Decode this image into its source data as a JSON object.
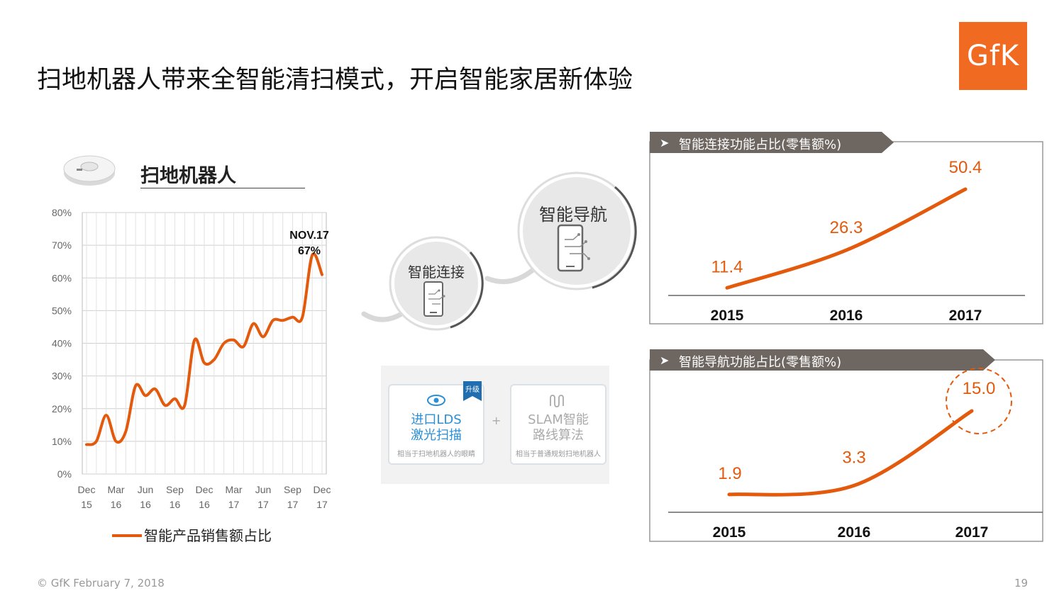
{
  "title": "扫地机器人带来全智能清扫模式，开启智能家居新体验",
  "logo": "GfK",
  "section_title": "扫地机器人",
  "footer": {
    "copyright": "© GfK February 7, 2018",
    "page": "19"
  },
  "circles": {
    "small_label": "智能连接",
    "large_label": "智能导航"
  },
  "tech": {
    "card1": {
      "badge": "升级",
      "line1": "进口LDS",
      "line2": "激光扫描",
      "sub": "相当于扫地机器人的眼睛"
    },
    "plus": "+",
    "card2": {
      "line1": "SLAM智能",
      "line2": "路线算法",
      "sub": "相当于普通规划扫地机器人"
    }
  },
  "colors": {
    "orange": "#e35a0c",
    "panel_header": "#6e6661",
    "tech_blue": "#2b8fd6"
  },
  "chart_data": [
    {
      "type": "line",
      "ylim": [
        0,
        80
      ],
      "yticks": [
        "0%",
        "10%",
        "20%",
        "30%",
        "40%",
        "50%",
        "60%",
        "70%",
        "80%"
      ],
      "xticks": [
        [
          "Dec",
          "15"
        ],
        [
          "Mar",
          "16"
        ],
        [
          "Jun",
          "16"
        ],
        [
          "Sep",
          "16"
        ],
        [
          "Dec",
          "16"
        ],
        [
          "Mar",
          "17"
        ],
        [
          "Jun",
          "17"
        ],
        [
          "Sep",
          "17"
        ],
        [
          "Dec",
          "17"
        ]
      ],
      "grid": true,
      "legend": "bottom",
      "series": [
        {
          "name": "智能产品销售额占比",
          "values": [
            9,
            10,
            18,
            10,
            13,
            27,
            24,
            26,
            21,
            23,
            21,
            41,
            34,
            35,
            40,
            41,
            39,
            46,
            42,
            47,
            47,
            48,
            48,
            67,
            61
          ]
        }
      ],
      "annotation": {
        "line1": "NOV.17",
        "line2": "67%"
      }
    },
    {
      "type": "line",
      "title": "智能连接功能占比(零售额%)",
      "categories": [
        "2015",
        "2016",
        "2017"
      ],
      "values": [
        11.4,
        26.3,
        50.4
      ],
      "labels": [
        "11.4",
        "26.3",
        "50.4"
      ]
    },
    {
      "type": "line",
      "title": "智能导航功能占比(零售额%)",
      "categories": [
        "2015",
        "2016",
        "2017"
      ],
      "values": [
        1.9,
        3.3,
        15.0
      ],
      "labels": [
        "1.9",
        "3.3",
        "15.0"
      ]
    }
  ]
}
